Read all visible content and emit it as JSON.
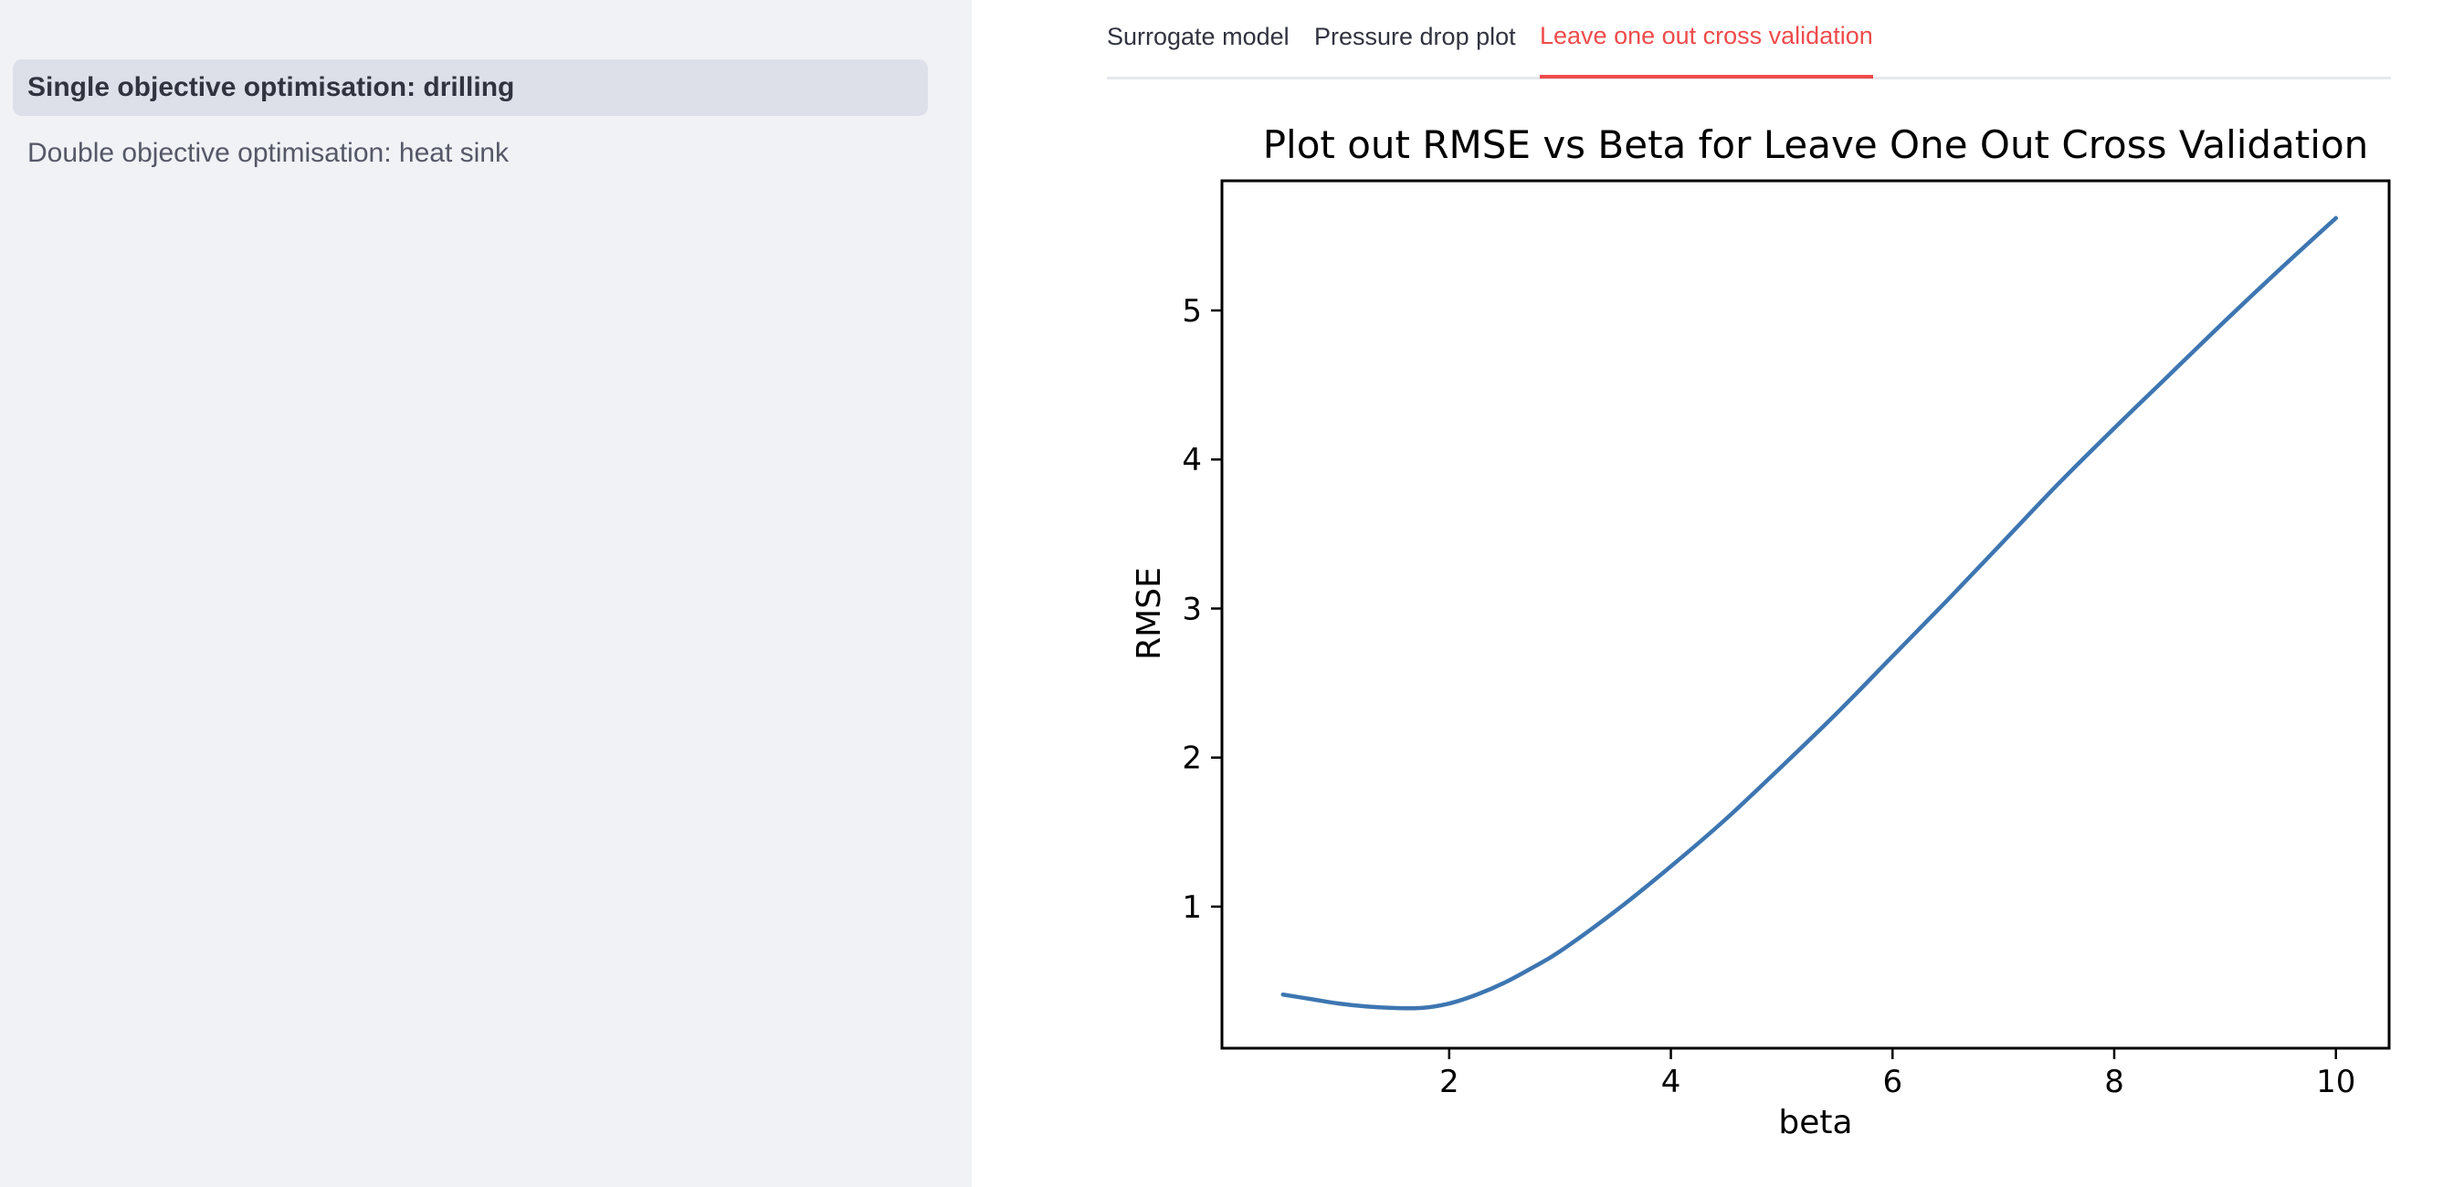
{
  "sidebar": {
    "items": [
      {
        "label": "Single objective optimisation: drilling"
      },
      {
        "label": "Double objective optimisation: heat sink"
      }
    ]
  },
  "tabs": [
    {
      "label": "Surrogate model"
    },
    {
      "label": "Pressure drop plot"
    },
    {
      "label": "Leave one out cross validation"
    }
  ],
  "colors": {
    "accent": "#ef4b4b",
    "sidebar_bg": "#f0f2f6",
    "line": "#3d76b1"
  },
  "chart_data": {
    "type": "line",
    "title": "Plot out RMSE vs Beta for Leave One Out Cross Validation",
    "xlabel": "beta",
    "ylabel": "RMSE",
    "xlim": [
      -0.05,
      10.48
    ],
    "ylim": [
      0.05,
      5.87
    ],
    "xticks": [
      2,
      4,
      6,
      8,
      10
    ],
    "yticks": [
      1,
      2,
      3,
      4,
      5
    ],
    "grid": false,
    "series": [
      {
        "x": [
          0.5,
          0.75,
          1.0,
          1.25,
          1.5,
          1.75,
          2.0,
          2.25,
          2.5,
          2.75,
          3.0,
          3.5,
          4.0,
          4.5,
          5.0,
          5.5,
          6.0,
          6.5,
          7.0,
          7.5,
          8.0,
          8.5,
          9.0,
          9.5,
          10.0
        ],
        "y": [
          0.41,
          0.38,
          0.35,
          0.33,
          0.32,
          0.32,
          0.35,
          0.41,
          0.49,
          0.59,
          0.7,
          0.97,
          1.27,
          1.59,
          1.94,
          2.3,
          2.68,
          3.06,
          3.45,
          3.84,
          4.21,
          4.57,
          4.93,
          5.28,
          5.62
        ]
      }
    ]
  }
}
